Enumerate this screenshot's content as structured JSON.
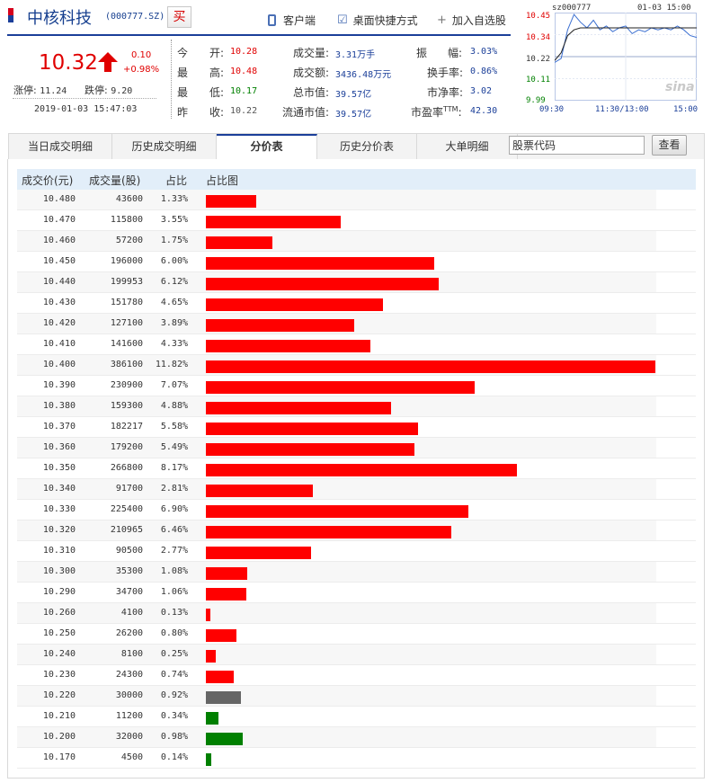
{
  "header": {
    "stock_name": "中核科技",
    "stock_code": "(000777.SZ)",
    "buy_label": "买",
    "links": {
      "client": "客户端",
      "desktop_shortcut": "桌面快捷方式",
      "add_watchlist": "加入自选股"
    }
  },
  "quote": {
    "price": "10.32",
    "change": "0.10",
    "change_pct": "+0.98%",
    "limit_up_label": "涨停:",
    "limit_up": "11.24",
    "limit_down_label": "跌停:",
    "limit_down": "9.20",
    "timestamp": "2019-01-03 15:47:03",
    "stats": {
      "open_label_a": "今",
      "open_label_b": "开:",
      "open": "10.28",
      "high_label_a": "最",
      "high_label_b": "高:",
      "high": "10.48",
      "low_label_a": "最",
      "low_label_b": "低:",
      "low": "10.17",
      "prev_label_a": "昨",
      "prev_label_b": "收:",
      "prev_close": "10.22",
      "volume_label": "成交量:",
      "volume": "3.31万手",
      "amount_label": "成交额:",
      "amount": "3436.48万元",
      "mcap_label": "总市值:",
      "mcap": "39.57亿",
      "float_mcap_label": "流通市值:",
      "float_mcap": "39.57亿",
      "amplitude_label_a": "振",
      "amplitude_label_b": "幅:",
      "amplitude": "3.03%",
      "turnover_label": "换手率:",
      "turnover": "0.86%",
      "pb_label": "市净率:",
      "pb": "3.02",
      "pe_label": "市盈率",
      "pe_sup": "TTM",
      "pe_colon": ":",
      "pe": "42.30"
    }
  },
  "mini_chart": {
    "code": "sz000777",
    "date_time": "01-03 15:00",
    "y_labels": [
      "10.45",
      "10.34",
      "10.22",
      "10.11",
      "9.99"
    ],
    "y_colors": [
      "#e00000",
      "#e00000",
      "#333333",
      "#008000",
      "#008000"
    ],
    "x_labels": [
      "09:30",
      "11:30/13:00",
      "15:00"
    ],
    "logo": "sina",
    "ylim": [
      9.99,
      10.45
    ],
    "price_line": [
      10.19,
      10.21,
      10.36,
      10.44,
      10.4,
      10.37,
      10.41,
      10.36,
      10.38,
      10.35,
      10.37,
      10.38,
      10.34,
      10.36,
      10.35,
      10.37,
      10.36,
      10.37,
      10.36,
      10.38,
      10.36,
      10.33,
      10.32
    ],
    "avg_line": [
      10.2,
      10.24,
      10.33,
      10.36,
      10.37,
      10.37,
      10.37,
      10.37,
      10.37,
      10.37,
      10.37,
      10.37,
      10.37,
      10.37,
      10.37,
      10.37,
      10.37,
      10.37,
      10.37,
      10.37,
      10.37,
      10.37,
      10.37
    ]
  },
  "tabs": [
    "当日成交明细",
    "历史成交明细",
    "分价表",
    "历史分价表",
    "大单明细"
  ],
  "active_tab": 2,
  "search": {
    "placeholder": "股票代码",
    "value": "股票代码",
    "button": "查看"
  },
  "table": {
    "columns": [
      "成交价(元)",
      "成交量(股)",
      "占比",
      "占比图"
    ],
    "rows": [
      {
        "price": "10.480",
        "volume": "43600",
        "pct": "1.33%",
        "ratio": 1.33,
        "color": "#ff0000"
      },
      {
        "price": "10.470",
        "volume": "115800",
        "pct": "3.55%",
        "ratio": 3.55,
        "color": "#ff0000"
      },
      {
        "price": "10.460",
        "volume": "57200",
        "pct": "1.75%",
        "ratio": 1.75,
        "color": "#ff0000"
      },
      {
        "price": "10.450",
        "volume": "196000",
        "pct": "6.00%",
        "ratio": 6.0,
        "color": "#ff0000"
      },
      {
        "price": "10.440",
        "volume": "199953",
        "pct": "6.12%",
        "ratio": 6.12,
        "color": "#ff0000"
      },
      {
        "price": "10.430",
        "volume": "151780",
        "pct": "4.65%",
        "ratio": 4.65,
        "color": "#ff0000"
      },
      {
        "price": "10.420",
        "volume": "127100",
        "pct": "3.89%",
        "ratio": 3.89,
        "color": "#ff0000"
      },
      {
        "price": "10.410",
        "volume": "141600",
        "pct": "4.33%",
        "ratio": 4.33,
        "color": "#ff0000"
      },
      {
        "price": "10.400",
        "volume": "386100",
        "pct": "11.82%",
        "ratio": 11.82,
        "color": "#ff0000"
      },
      {
        "price": "10.390",
        "volume": "230900",
        "pct": "7.07%",
        "ratio": 7.07,
        "color": "#ff0000"
      },
      {
        "price": "10.380",
        "volume": "159300",
        "pct": "4.88%",
        "ratio": 4.88,
        "color": "#ff0000"
      },
      {
        "price": "10.370",
        "volume": "182217",
        "pct": "5.58%",
        "ratio": 5.58,
        "color": "#ff0000"
      },
      {
        "price": "10.360",
        "volume": "179200",
        "pct": "5.49%",
        "ratio": 5.49,
        "color": "#ff0000"
      },
      {
        "price": "10.350",
        "volume": "266800",
        "pct": "8.17%",
        "ratio": 8.17,
        "color": "#ff0000"
      },
      {
        "price": "10.340",
        "volume": "91700",
        "pct": "2.81%",
        "ratio": 2.81,
        "color": "#ff0000"
      },
      {
        "price": "10.330",
        "volume": "225400",
        "pct": "6.90%",
        "ratio": 6.9,
        "color": "#ff0000"
      },
      {
        "price": "10.320",
        "volume": "210965",
        "pct": "6.46%",
        "ratio": 6.46,
        "color": "#ff0000"
      },
      {
        "price": "10.310",
        "volume": "90500",
        "pct": "2.77%",
        "ratio": 2.77,
        "color": "#ff0000"
      },
      {
        "price": "10.300",
        "volume": "35300",
        "pct": "1.08%",
        "ratio": 1.08,
        "color": "#ff0000"
      },
      {
        "price": "10.290",
        "volume": "34700",
        "pct": "1.06%",
        "ratio": 1.06,
        "color": "#ff0000"
      },
      {
        "price": "10.260",
        "volume": "4100",
        "pct": "0.13%",
        "ratio": 0.13,
        "color": "#ff0000"
      },
      {
        "price": "10.250",
        "volume": "26200",
        "pct": "0.80%",
        "ratio": 0.8,
        "color": "#ff0000"
      },
      {
        "price": "10.240",
        "volume": "8100",
        "pct": "0.25%",
        "ratio": 0.25,
        "color": "#ff0000"
      },
      {
        "price": "10.230",
        "volume": "24300",
        "pct": "0.74%",
        "ratio": 0.74,
        "color": "#ff0000"
      },
      {
        "price": "10.220",
        "volume": "30000",
        "pct": "0.92%",
        "ratio": 0.92,
        "color": "#666666"
      },
      {
        "price": "10.210",
        "volume": "11200",
        "pct": "0.34%",
        "ratio": 0.34,
        "color": "#008000"
      },
      {
        "price": "10.200",
        "volume": "32000",
        "pct": "0.98%",
        "ratio": 0.98,
        "color": "#008000"
      },
      {
        "price": "10.170",
        "volume": "4500",
        "pct": "0.14%",
        "ratio": 0.14,
        "color": "#008000"
      }
    ]
  }
}
